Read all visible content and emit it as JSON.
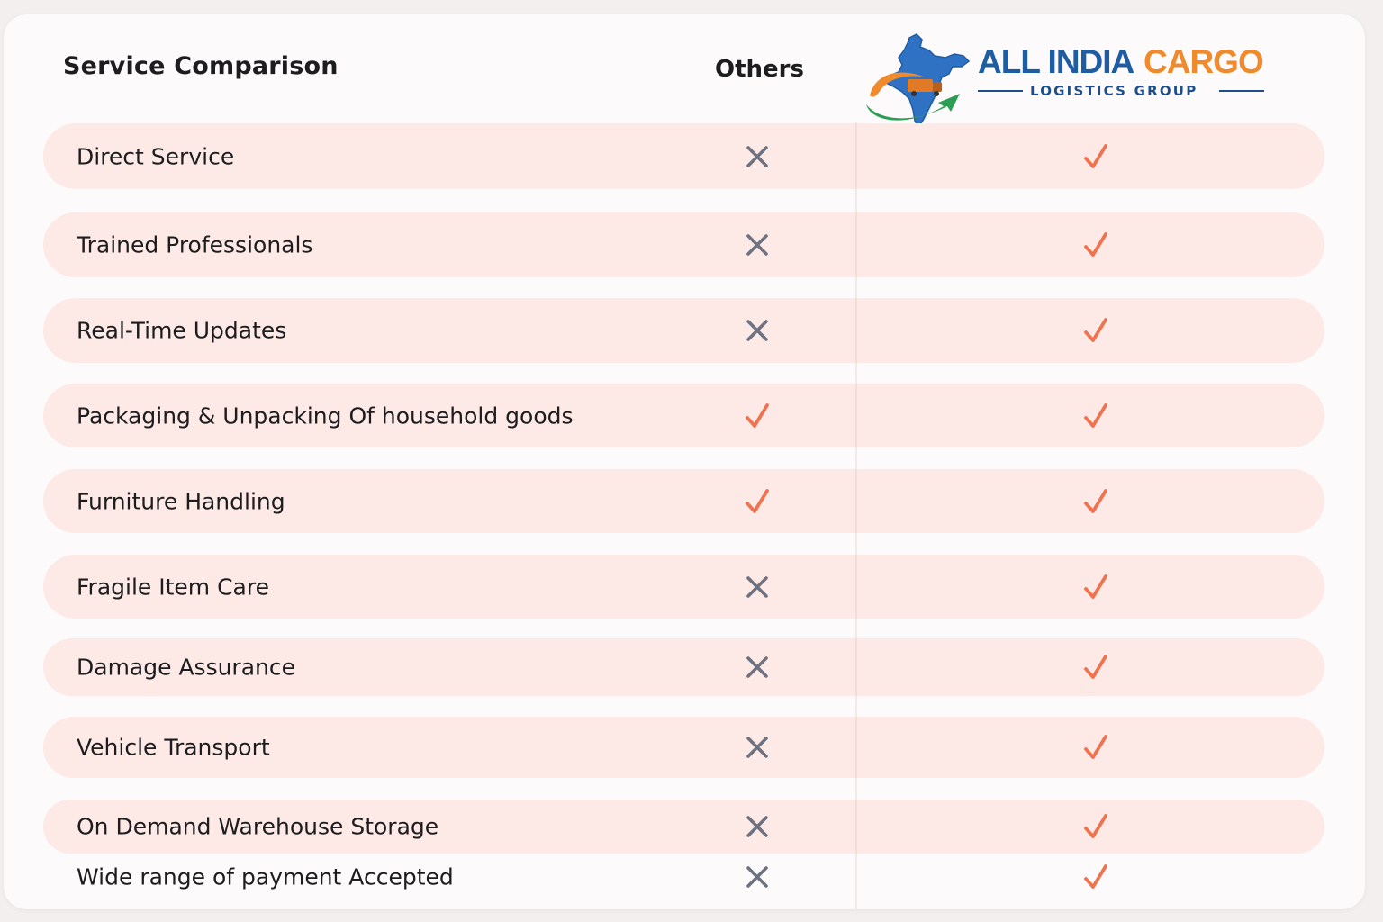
{
  "header": {
    "title": "Service Comparison",
    "others_label": "Others"
  },
  "logo": {
    "name_part1": "ALL INDIA",
    "name_part2": "CARGO",
    "subtitle": "LOGISTICS GROUP",
    "colors": {
      "blue": "#1f5da3",
      "orange": "#ef8b2c",
      "green": "#2e9e55"
    }
  },
  "colors": {
    "row_background": "#fde9e6",
    "check": "#f0734f",
    "cross": "#6e7280"
  },
  "rows": [
    {
      "label": "Direct Service",
      "others": "cross",
      "aic": "check"
    },
    {
      "label": "Trained Professionals",
      "others": "cross",
      "aic": "check"
    },
    {
      "label": "Real-Time Updates",
      "others": "cross",
      "aic": "check"
    },
    {
      "label": "Packaging & Unpacking Of household goods",
      "others": "check",
      "aic": "check"
    },
    {
      "label": "Furniture Handling",
      "others": "check",
      "aic": "check"
    },
    {
      "label": "Fragile Item Care",
      "others": "cross",
      "aic": "check"
    },
    {
      "label": "Damage Assurance",
      "others": "cross",
      "aic": "check"
    },
    {
      "label": "Vehicle Transport",
      "others": "cross",
      "aic": "check"
    },
    {
      "label": "On Demand Warehouse Storage",
      "others": "cross",
      "aic": "check"
    },
    {
      "label": "Wide range of payment Accepted",
      "others": "cross",
      "aic": "check"
    }
  ]
}
